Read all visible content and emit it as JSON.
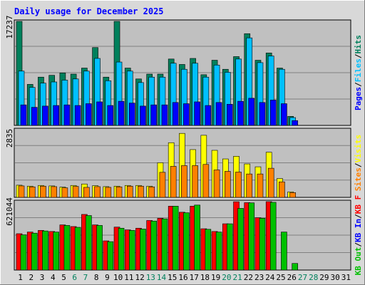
{
  "title": "Daily usage for December 2025",
  "chart_data": [
    {
      "type": "bar",
      "panel": "hits-files-pages",
      "scale_label": "17237",
      "ylim": [
        0,
        17237
      ],
      "grid": true,
      "series": [
        {
          "name": "Hits",
          "color": "#00805C",
          "values": [
            17237,
            6800,
            8000,
            8300,
            8700,
            8500,
            9500,
            12900,
            8000,
            17237,
            9500,
            7700,
            8500,
            8500,
            11000,
            10100,
            11100,
            8400,
            10800,
            9300,
            11400,
            15200,
            10800,
            12000,
            9500,
            1500,
            0,
            0,
            0,
            0,
            0
          ]
        },
        {
          "name": "Files",
          "color": "#00C0FF",
          "values": [
            9000,
            6300,
            7000,
            7200,
            7500,
            7700,
            9000,
            11100,
            7400,
            10500,
            9000,
            7100,
            8000,
            8000,
            10300,
            9300,
            10300,
            8000,
            10000,
            8800,
            11000,
            14500,
            10400,
            11500,
            9300,
            1300,
            0,
            0,
            0,
            0,
            0
          ]
        },
        {
          "name": "Pages",
          "color": "#0000FF",
          "values": [
            3400,
            3000,
            3200,
            3300,
            3400,
            3300,
            3600,
            3900,
            3300,
            4000,
            3700,
            3200,
            3400,
            3400,
            3800,
            3600,
            3900,
            3300,
            3800,
            3500,
            4000,
            4500,
            3800,
            4200,
            3600,
            800,
            0,
            0,
            0,
            0,
            0
          ]
        }
      ],
      "legend": [
        "Hits",
        "Files",
        "Pages"
      ]
    },
    {
      "type": "bar",
      "panel": "visits-sites",
      "scale_label": "2835",
      "ylim": [
        0,
        2835
      ],
      "grid": true,
      "series": [
        {
          "name": "Visits",
          "color": "#FFFF00",
          "values": [
            510,
            470,
            500,
            480,
            430,
            500,
            560,
            490,
            450,
            470,
            500,
            500,
            470,
            1450,
            2290,
            2680,
            2000,
            2600,
            1970,
            1610,
            1720,
            1400,
            1280,
            1890,
            790,
            230,
            0,
            0,
            0,
            0,
            0
          ]
        },
        {
          "name": "Sites",
          "color": "#FF8000",
          "values": [
            480,
            440,
            470,
            450,
            400,
            460,
            420,
            450,
            420,
            440,
            470,
            470,
            440,
            1050,
            1300,
            1330,
            1330,
            1380,
            1150,
            1090,
            1060,
            980,
            980,
            1220,
            650,
            200,
            0,
            0,
            0,
            0,
            0
          ]
        }
      ],
      "legend": [
        "Visits",
        "Sites"
      ]
    },
    {
      "type": "bar",
      "panel": "kb-f-in-out",
      "scale_label": "621044",
      "ylim": [
        0,
        621044
      ],
      "grid": true,
      "series": [
        {
          "name": "KB F",
          "color": "#FF0000",
          "values": [
            330000,
            345000,
            360000,
            350000,
            410000,
            395000,
            505000,
            410000,
            265000,
            390000,
            365000,
            380000,
            450000,
            470000,
            580000,
            525000,
            580000,
            375000,
            350000,
            420000,
            620000,
            612000,
            475000,
            621044,
            0,
            0,
            0,
            0,
            0,
            0,
            0
          ]
        },
        {
          "name": "KB In",
          "color": "#0000FF",
          "values": [
            0,
            0,
            0,
            0,
            0,
            0,
            0,
            0,
            0,
            0,
            0,
            0,
            0,
            0,
            0,
            0,
            0,
            0,
            0,
            0,
            0,
            0,
            0,
            0,
            0,
            0,
            0,
            0,
            0,
            0,
            0
          ]
        },
        {
          "name": "KB Out",
          "color": "#00C000",
          "values": [
            320000,
            335000,
            355000,
            345000,
            405000,
            388000,
            495000,
            405000,
            258000,
            380000,
            360000,
            372000,
            445000,
            465000,
            580000,
            520000,
            590000,
            370000,
            345000,
            420000,
            560000,
            610000,
            470000,
            615000,
            345000,
            60000,
            0,
            0,
            0,
            0,
            0
          ]
        }
      ],
      "legend": [
        "KB F",
        "KB In",
        "KB Out"
      ]
    }
  ],
  "days": [
    "1",
    "2",
    "3",
    "4",
    "5",
    "6",
    "7",
    "8",
    "9",
    "10",
    "11",
    "12",
    "13",
    "14",
    "15",
    "16",
    "17",
    "18",
    "19",
    "20",
    "21",
    "22",
    "23",
    "24",
    "25",
    "26",
    "27",
    "28",
    "29",
    "30",
    "31"
  ],
  "weekend_days": [
    "6",
    "7",
    "13",
    "14",
    "20",
    "21",
    "27",
    "28"
  ],
  "colors": {
    "background": "#C0C0C0",
    "frame": "#D8D8D8",
    "title": "#0000FF",
    "day_label": "#000000",
    "weekend_label": "#00805C",
    "grid": "#808080",
    "slash": "#000000"
  }
}
